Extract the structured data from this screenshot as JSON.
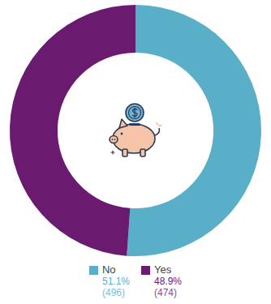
{
  "chart_data": {
    "type": "doughnut",
    "categories": [
      "No",
      "Yes"
    ],
    "values": [
      51.1,
      48.9
    ],
    "value_labels": [
      "51.1%",
      "48.9%"
    ],
    "counts": [
      496,
      474
    ],
    "count_labels": [
      "(496)",
      "(474)"
    ],
    "colors": [
      "#5aafc8",
      "#6a1b6f"
    ],
    "legend": "bottom",
    "data_labels": false
  }
}
